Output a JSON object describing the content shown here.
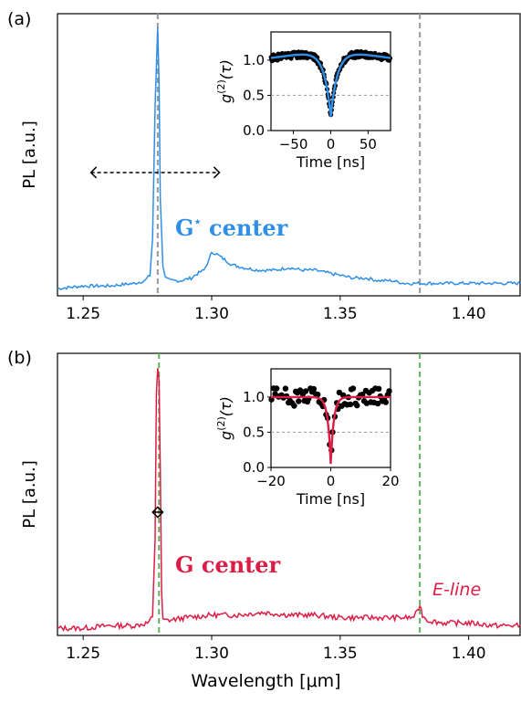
{
  "chart_data": [
    {
      "type": "line",
      "panel_label": "(a)",
      "ylabel": "PL [a.u.]",
      "xlim": [
        1.24,
        1.42
      ],
      "x_ticks": [
        "1.25",
        "1.30",
        "1.35",
        "1.40"
      ],
      "series": [
        {
          "color": "#2f8fe8",
          "x": [
            1.24,
            1.25,
            1.26,
            1.27,
            1.274,
            1.276,
            1.277,
            1.278,
            1.279,
            1.2795,
            1.28,
            1.281,
            1.282,
            1.284,
            1.288,
            1.292,
            1.295,
            1.297,
            1.299,
            1.3,
            1.302,
            1.305,
            1.308,
            1.312,
            1.318,
            1.325,
            1.33,
            1.335,
            1.34,
            1.345,
            1.35,
            1.355,
            1.36,
            1.365,
            1.37,
            1.375,
            1.378,
            1.381,
            1.385,
            1.39,
            1.4,
            1.41,
            1.42
          ],
          "y": [
            0.01,
            0.02,
            0.02,
            0.03,
            0.04,
            0.06,
            0.2,
            0.7,
            1.0,
            0.8,
            0.35,
            0.1,
            0.05,
            0.04,
            0.04,
            0.05,
            0.07,
            0.08,
            0.12,
            0.15,
            0.14,
            0.12,
            0.1,
            0.09,
            0.08,
            0.08,
            0.09,
            0.08,
            0.08,
            0.07,
            0.06,
            0.05,
            0.05,
            0.04,
            0.04,
            0.03,
            0.03,
            0.03,
            0.03,
            0.03,
            0.03,
            0.03,
            0.03
          ]
        }
      ],
      "vlines": [
        {
          "x": 1.279,
          "color": "#999999"
        },
        {
          "x": 1.381,
          "color": "#999999"
        }
      ],
      "bracket": {
        "x1": 1.253,
        "x2": 1.303,
        "y": 0.45
      },
      "annotation": {
        "text": "G",
        "sup": "⋆",
        "rest": " center",
        "color": "#2f8fe8"
      },
      "inset": {
        "ylabel": "g(2)(τ)",
        "xlabel": "Time [ns]",
        "xlim": [
          -80,
          80
        ],
        "ylim": [
          0.0,
          1.4
        ],
        "x_ticks": [
          "−50",
          "0",
          "50"
        ],
        "y_ticks": [
          "0.0",
          "0.5",
          "1.0"
        ],
        "dash_y": 0.5,
        "fit_color": "#2f8fe8",
        "fit": {
          "baseline": 1.15,
          "dip": 0.95,
          "tau": 9,
          "slope": -0.0015
        }
      }
    },
    {
      "type": "line",
      "panel_label": "(b)",
      "ylabel": "PL [a.u.]",
      "xlabel": "Wavelength [μm]",
      "xlim": [
        1.24,
        1.42
      ],
      "x_ticks": [
        "1.25",
        "1.30",
        "1.35",
        "1.40"
      ],
      "series": [
        {
          "color": "#dc1e46",
          "x": [
            1.24,
            1.25,
            1.26,
            1.27,
            1.275,
            1.277,
            1.278,
            1.2785,
            1.279,
            1.2795,
            1.28,
            1.2805,
            1.281,
            1.283,
            1.29,
            1.3,
            1.31,
            1.32,
            1.33,
            1.34,
            1.35,
            1.36,
            1.37,
            1.378,
            1.38,
            1.381,
            1.382,
            1.384,
            1.39,
            1.4,
            1.41,
            1.42
          ],
          "y": [
            0.01,
            0.01,
            0.02,
            0.02,
            0.03,
            0.05,
            0.35,
            0.9,
            1.0,
            0.95,
            0.6,
            0.15,
            0.04,
            0.04,
            0.05,
            0.06,
            0.06,
            0.07,
            0.06,
            0.06,
            0.05,
            0.05,
            0.05,
            0.05,
            0.07,
            0.1,
            0.06,
            0.04,
            0.03,
            0.03,
            0.02,
            0.02
          ]
        }
      ],
      "vlines": [
        {
          "x": 1.2795,
          "color": "#5fb35f"
        },
        {
          "x": 1.381,
          "color": "#5fb35f"
        }
      ],
      "bracket": {
        "x1": 1.277,
        "x2": 1.281,
        "y": 0.45
      },
      "annotation": {
        "text": "G center",
        "color": "#dc1e46"
      },
      "eline": {
        "text": "E-line",
        "color": "#dc1e46"
      },
      "inset": {
        "ylabel": "g(2)(τ)",
        "xlabel": "Time [ns]",
        "xlim": [
          -20,
          20
        ],
        "ylim": [
          0.0,
          1.4
        ],
        "x_ticks": [
          "−20",
          "0",
          "20"
        ],
        "y_ticks": [
          "0.0",
          "0.5",
          "1.0"
        ],
        "dash_y": 0.5,
        "fit_color": "#dc1e46",
        "fit": {
          "baseline": 1.0,
          "dip": 0.95,
          "tau": 1.0,
          "slope": 0
        }
      }
    }
  ]
}
